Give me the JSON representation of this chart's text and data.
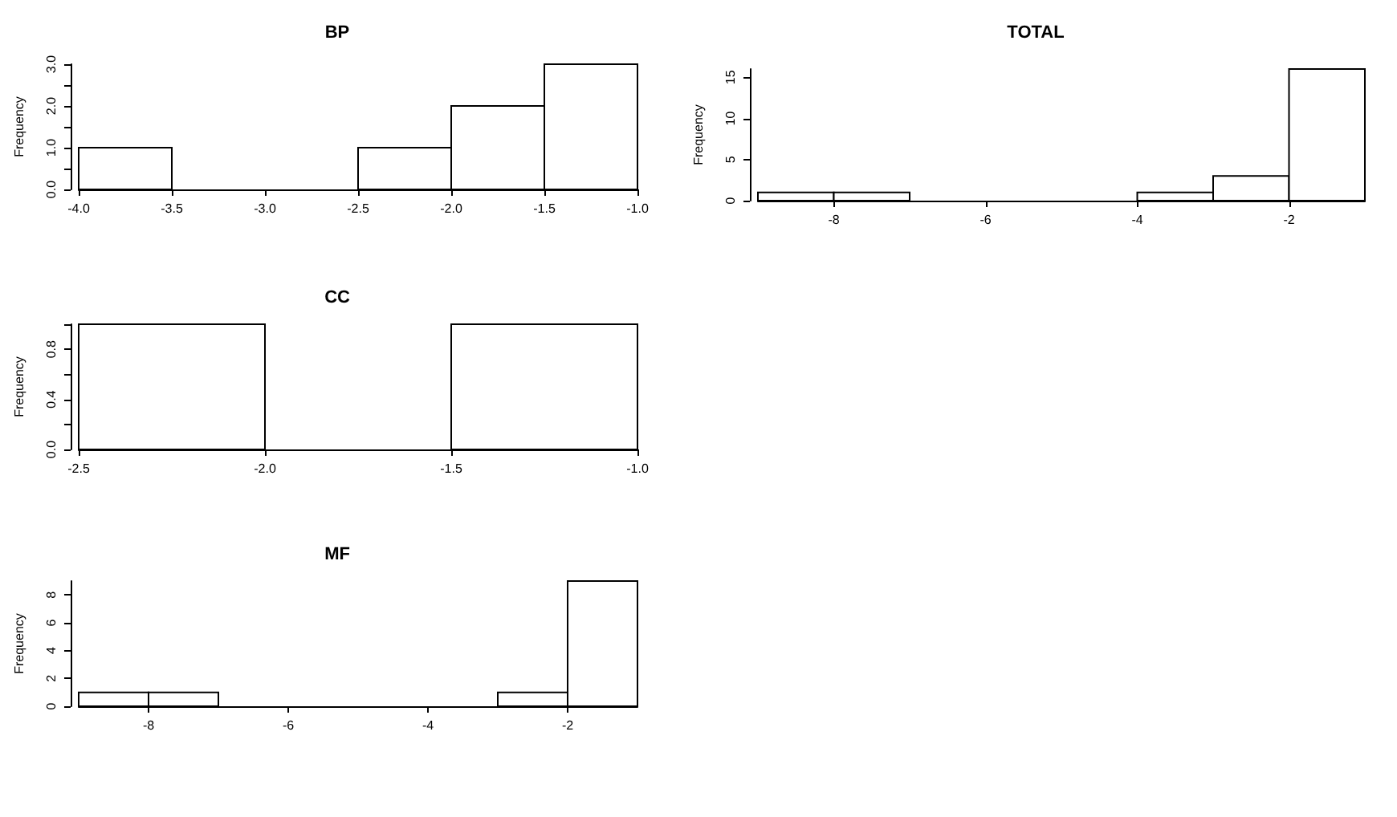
{
  "chart_data": [
    {
      "type": "histogram",
      "title": "BP",
      "ylabel": "Frequency",
      "bins": [
        -4,
        -3.5,
        -3,
        -2.5,
        -2,
        -1.5,
        -1
      ],
      "values": [
        1,
        0,
        0,
        1,
        2,
        3
      ],
      "color": "#ffffff",
      "xlim": [
        -4,
        -1
      ],
      "xticks": [
        {
          "value": -4,
          "label": "-4.0"
        },
        {
          "value": -3.5,
          "label": "-3.5"
        },
        {
          "value": -3,
          "label": "-3.0"
        },
        {
          "value": -2.5,
          "label": "-2.5"
        },
        {
          "value": -2,
          "label": "-2.0"
        },
        {
          "value": -1.5,
          "label": "-1.5"
        },
        {
          "value": -1,
          "label": "-1.0"
        }
      ],
      "ylim": [
        0,
        3
      ],
      "yticks": [
        {
          "value": 0,
          "label": "0.0"
        },
        {
          "value": 0.5,
          "label": null
        },
        {
          "value": 1,
          "label": "1.0"
        },
        {
          "value": 1.5,
          "label": null
        },
        {
          "value": 2,
          "label": "2.0"
        },
        {
          "value": 2.5,
          "label": null
        },
        {
          "value": 3,
          "label": "3.0"
        }
      ]
    },
    {
      "type": "histogram",
      "title": "TOTAL",
      "ylabel": "Frequency",
      "bins": [
        -9,
        -8,
        -7,
        -6,
        -5,
        -4,
        -3,
        -2,
        -1
      ],
      "values": [
        1,
        1,
        0,
        0,
        0,
        1,
        3,
        16
      ],
      "color": "#ffffff",
      "xlim": [
        -9,
        -1
      ],
      "xticks": [
        -8,
        -6,
        -4,
        -2
      ],
      "ylim": [
        0,
        16
      ],
      "yticks": [
        0,
        5,
        10,
        15
      ]
    },
    {
      "type": "histogram",
      "title": "CC",
      "ylabel": "Frequency",
      "bins": [
        -2.5,
        -2,
        -1.5,
        -1
      ],
      "values": [
        1,
        0,
        1
      ],
      "color": "#ffffff",
      "xlim": [
        -2.5,
        -1
      ],
      "xticks": [
        {
          "value": -2.5,
          "label": "-2.5"
        },
        {
          "value": -2,
          "label": "-2.0"
        },
        {
          "value": -1.5,
          "label": "-1.5"
        },
        {
          "value": -1,
          "label": "-1.0"
        }
      ],
      "ylim": [
        0,
        1
      ],
      "yticks": [
        {
          "value": 0,
          "label": "0.0"
        },
        {
          "value": 0.2,
          "label": null
        },
        {
          "value": 0.4,
          "label": "0.4"
        },
        {
          "value": 0.6,
          "label": null
        },
        {
          "value": 0.8,
          "label": "0.8"
        },
        {
          "value": 1,
          "label": null
        }
      ]
    },
    {
      "type": "histogram",
      "title": "MF",
      "ylabel": "Frequency",
      "bins": [
        -9,
        -8,
        -7,
        -6,
        -5,
        -4,
        -3,
        -2,
        -1
      ],
      "values": [
        1,
        1,
        0,
        0,
        0,
        0,
        1,
        9
      ],
      "color": "#ffffff",
      "xlim": [
        -9,
        -1
      ],
      "xticks": [
        -8,
        -6,
        -4,
        -2
      ],
      "ylim": [
        0,
        9
      ],
      "yticks": [
        0,
        2,
        4,
        6,
        8
      ]
    }
  ]
}
